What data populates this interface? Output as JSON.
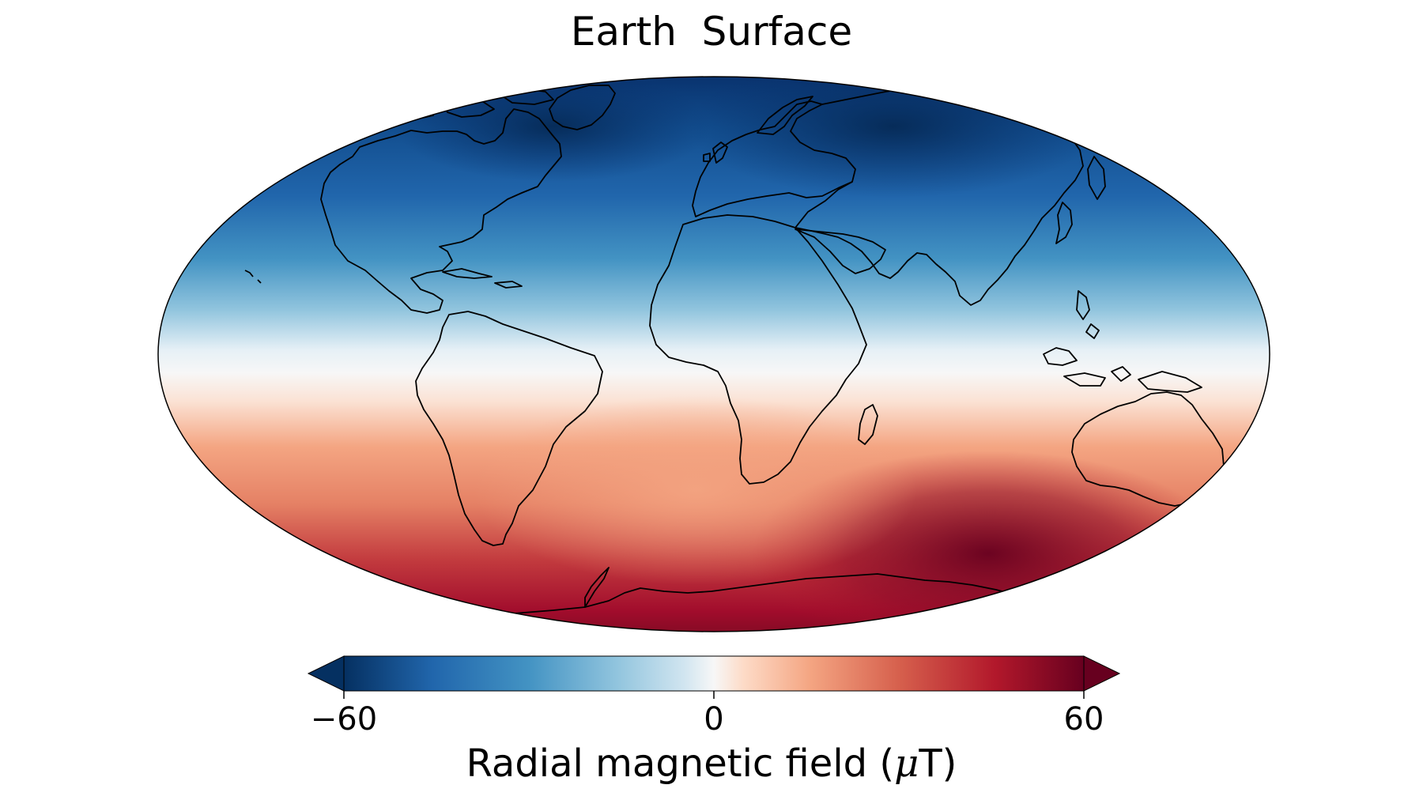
{
  "title": "Earth  Surface",
  "projection": "hammer",
  "field": {
    "quantity": "Radial magnetic field",
    "unit_symbol": "μ",
    "unit_letter": "T"
  },
  "colorbar": {
    "colormap": "RdBu_r",
    "vmin": -60,
    "vmax": 60,
    "extend": "both",
    "ticks": [
      {
        "value": -60,
        "label": "−60"
      },
      {
        "value": 0,
        "label": "0"
      },
      {
        "value": 60,
        "label": "60"
      }
    ],
    "colors": {
      "negative": "#053061",
      "mid": "#f7f7f7",
      "positive": "#67001f"
    }
  },
  "coastlines": {
    "color": "#000000"
  }
}
